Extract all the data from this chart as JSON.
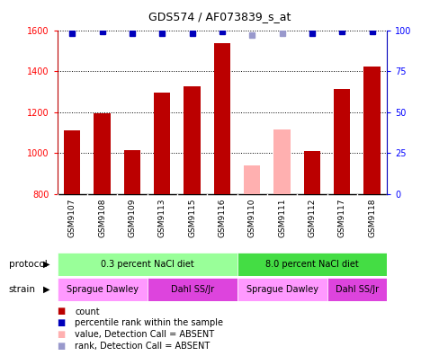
{
  "title": "GDS574 / AF073839_s_at",
  "samples": [
    "GSM9107",
    "GSM9108",
    "GSM9109",
    "GSM9113",
    "GSM9115",
    "GSM9116",
    "GSM9110",
    "GSM9111",
    "GSM9112",
    "GSM9117",
    "GSM9118"
  ],
  "bar_values": [
    1110,
    1195,
    1015,
    1295,
    1325,
    1535,
    940,
    1115,
    1010,
    1315,
    1425
  ],
  "bar_absent": [
    false,
    false,
    false,
    false,
    false,
    false,
    true,
    true,
    false,
    false,
    false
  ],
  "rank_values": [
    98,
    99,
    98,
    98,
    98,
    99,
    97,
    98,
    98,
    99,
    99
  ],
  "rank_absent": [
    false,
    false,
    false,
    false,
    false,
    false,
    true,
    true,
    false,
    false,
    false
  ],
  "ylim_left": [
    800,
    1600
  ],
  "ylim_right": [
    0,
    100
  ],
  "yticks_left": [
    800,
    1000,
    1200,
    1400,
    1600
  ],
  "yticks_right": [
    0,
    25,
    50,
    75,
    100
  ],
  "bar_color_present": "#bb0000",
  "bar_color_absent": "#ffb0b0",
  "rank_color_present": "#0000bb",
  "rank_color_absent": "#9999cc",
  "bg_color": "#ffffff",
  "plot_bg": "#ffffff",
  "xtick_bg": "#cccccc",
  "protocols": [
    {
      "label": "0.3 percent NaCl diet",
      "start": 0,
      "end": 6,
      "color": "#99ff99"
    },
    {
      "label": "8.0 percent NaCl diet",
      "start": 6,
      "end": 11,
      "color": "#44dd44"
    }
  ],
  "strains": [
    {
      "label": "Sprague Dawley",
      "start": 0,
      "end": 3,
      "color": "#ff99ff"
    },
    {
      "label": "Dahl SS/Jr",
      "start": 3,
      "end": 6,
      "color": "#dd44dd"
    },
    {
      "label": "Sprague Dawley",
      "start": 6,
      "end": 9,
      "color": "#ff99ff"
    },
    {
      "label": "Dahl SS/Jr",
      "start": 9,
      "end": 11,
      "color": "#dd44dd"
    }
  ],
  "legend_items": [
    {
      "label": "count",
      "color": "#bb0000"
    },
    {
      "label": "percentile rank within the sample",
      "color": "#0000bb"
    },
    {
      "label": "value, Detection Call = ABSENT",
      "color": "#ffb0b0"
    },
    {
      "label": "rank, Detection Call = ABSENT",
      "color": "#9999cc"
    }
  ],
  "protocol_label": "protocol",
  "strain_label": "strain"
}
